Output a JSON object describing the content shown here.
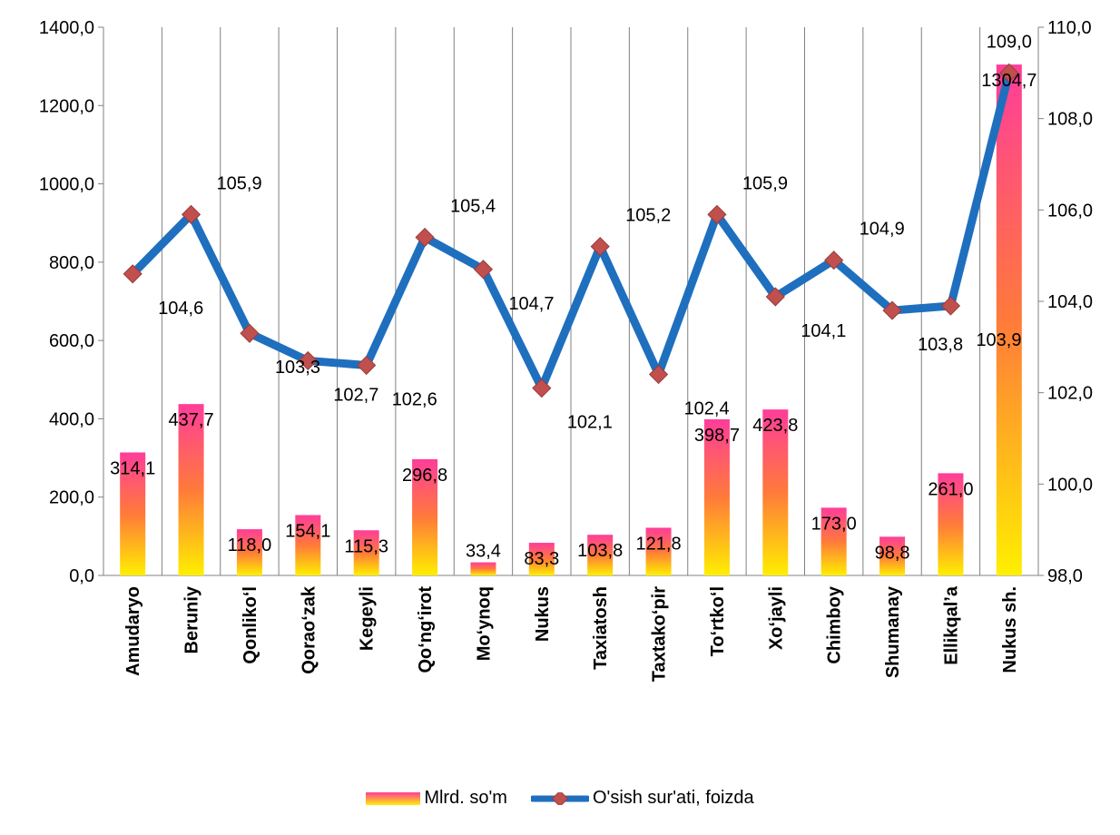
{
  "chart_data": {
    "type": "bar",
    "categories": [
      "Amudaryo",
      "Beruniy",
      "Qonliko‘l",
      "Qorao‘zak",
      "Kegeyli",
      "Qo‘ng‘irot",
      "Mo‘ynoq",
      "Nukus",
      "Taxiatosh",
      "Taxtako‘pir",
      "To‘rtko‘l",
      "Xo‘jayli",
      "Chimboy",
      "Shumanay",
      "Ellikqal’a",
      "Nukus sh."
    ],
    "series": [
      {
        "name": "Mlrd. so'm",
        "type": "bar",
        "axis": "left",
        "values": [
          314.1,
          437.7,
          118.0,
          154.1,
          115.3,
          296.8,
          33.4,
          83.3,
          103.8,
          121.8,
          398.7,
          423.8,
          173.0,
          98.8,
          261.0,
          1304.7
        ],
        "labels": [
          "314,1",
          "437,7",
          "118,0",
          "154,1",
          "115,3",
          "296,8",
          "33,4",
          "83,3",
          "103,8",
          "121,8",
          "398,7",
          "423,8",
          "173,0",
          "98,8",
          "261,0",
          "1304,7"
        ]
      },
      {
        "name": "O'sish sur'ati, foizda",
        "type": "line",
        "axis": "right",
        "values": [
          104.6,
          105.9,
          103.3,
          102.7,
          102.6,
          105.4,
          104.7,
          102.1,
          105.2,
          102.4,
          105.9,
          104.1,
          104.9,
          103.8,
          103.9,
          109.0
        ],
        "labels": [
          "104,6",
          "105,9",
          "103,3",
          "102,7",
          "102,6",
          "105,4",
          "104,7",
          "102,1",
          "105,2",
          "102,4",
          "105,9",
          "104,1",
          "104,9",
          "103,8",
          "103,9",
          "109,0"
        ]
      }
    ],
    "y_left": {
      "range": [
        0,
        1400
      ],
      "ticks": [
        "0,0",
        "200,0",
        "400,0",
        "600,0",
        "800,0",
        "1000,0",
        "1200,0",
        "1400,0"
      ]
    },
    "y_right": {
      "range": [
        98,
        110
      ],
      "ticks": [
        "98,0",
        "100,0",
        "102,0",
        "104,0",
        "106,0",
        "108,0",
        "110,0"
      ]
    },
    "grid": "vertical",
    "legend_position": "bottom",
    "colors": {
      "bar_top": "#ff3d9a",
      "bar_mid": "#ff7a3a",
      "bar_bottom": "#ffef00",
      "line": "#1f6fbf",
      "marker": "#c0504d",
      "grid": "#808080"
    }
  }
}
